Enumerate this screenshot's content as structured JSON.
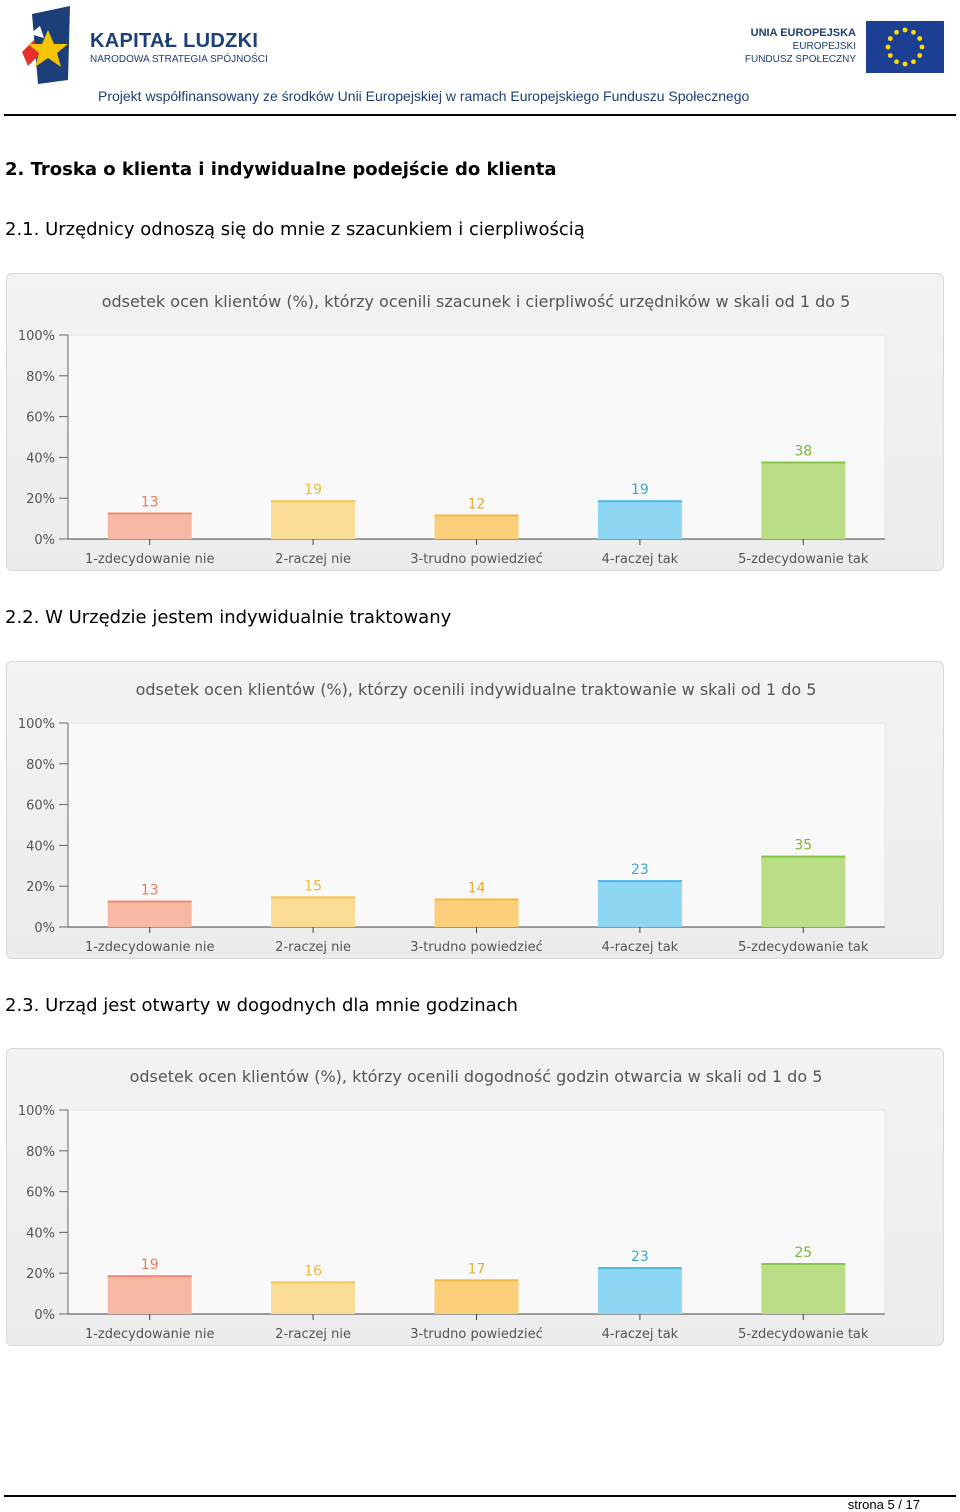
{
  "header": {
    "logo_title": "KAPITAŁ LUDZKI",
    "logo_subtitle": "NARODOWA STRATEGIA SPÓJNOŚCI",
    "eu_line1": "UNIA EUROPEJSKA",
    "eu_line2": "EUROPEJSKI",
    "eu_line3": "FUNDUSZ SPOŁECZNY",
    "project_text": "Projekt współfinansowany ze środków Unii Europejskiej w ramach Europejskiego Funduszu Społecznego"
  },
  "section": {
    "title": "2. Troska o klienta i indywidualne podejście do klienta"
  },
  "subsections": [
    {
      "title": "2.1. Urzędnicy odnoszą się do mnie z szacunkiem i cierpliwością"
    },
    {
      "title": "2.2. W Urzędzie jestem indywidualnie traktowany"
    },
    {
      "title": "2.3. Urząd jest otwarty w dogodnych dla mnie godzinach"
    }
  ],
  "colors": {
    "bars": [
      "#f7b8a4",
      "#fbdc96",
      "#fcd07a",
      "#8fd6f2",
      "#b9de85"
    ],
    "bar_tops": [
      "#f08a70",
      "#f5c659",
      "#f5b844",
      "#4fb9e6",
      "#86c44a"
    ],
    "labels": [
      "#f07a5a",
      "#f0b83a",
      "#f0a830",
      "#3aa8d8",
      "#7ab83a"
    ]
  },
  "chart_data": [
    {
      "type": "bar",
      "title": "odsetek ocen klientów (%), którzy ocenili szacunek i cierpliwość urzędników  w skali od 1 do 5",
      "categories": [
        "1-zdecydowanie nie",
        "2-raczej nie",
        "3-trudno powiedzieć",
        "4-raczej tak",
        "5-zdecydowanie tak"
      ],
      "values": [
        13,
        19,
        12,
        19,
        38
      ],
      "yticks": [
        "0%",
        "20%",
        "40%",
        "60%",
        "80%",
        "100%"
      ],
      "ylim": [
        0,
        100
      ]
    },
    {
      "type": "bar",
      "title": "odsetek ocen klientów (%), którzy ocenili indywidualne traktowanie w skali od 1 do 5",
      "categories": [
        "1-zdecydowanie nie",
        "2-raczej nie",
        "3-trudno powiedzieć",
        "4-raczej tak",
        "5-zdecydowanie tak"
      ],
      "values": [
        13,
        15,
        14,
        23,
        35
      ],
      "yticks": [
        "0%",
        "20%",
        "40%",
        "60%",
        "80%",
        "100%"
      ],
      "ylim": [
        0,
        100
      ]
    },
    {
      "type": "bar",
      "title": "odsetek ocen klientów (%), którzy ocenili dogodność godzin otwarcia w skali od 1 do 5",
      "categories": [
        "1-zdecydowanie nie",
        "2-raczej nie",
        "3-trudno powiedzieć",
        "4-raczej tak",
        "5-zdecydowanie tak"
      ],
      "values": [
        19,
        16,
        17,
        23,
        25
      ],
      "yticks": [
        "0%",
        "20%",
        "40%",
        "60%",
        "80%",
        "100%"
      ],
      "ylim": [
        0,
        100
      ]
    }
  ],
  "footer": {
    "page": "strona 5 / 17"
  }
}
